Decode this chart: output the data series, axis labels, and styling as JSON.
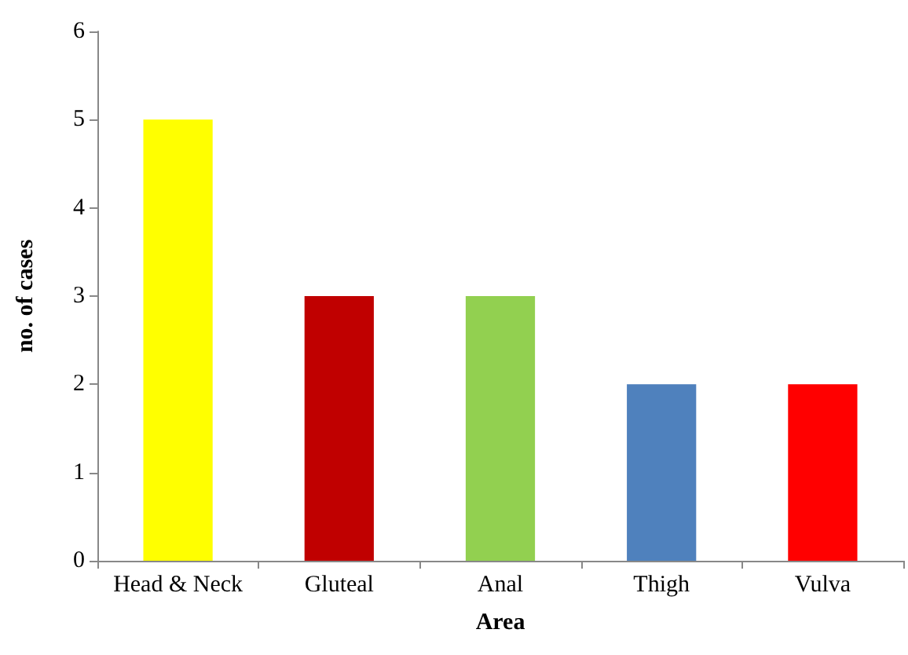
{
  "chart_data": {
    "type": "bar",
    "xlabel": "Area",
    "ylabel": "no. of cases",
    "categories": [
      "Head & Neck",
      "Gluteal",
      "Anal",
      "Thigh",
      "Vulva"
    ],
    "values": [
      5,
      3,
      3,
      2,
      2
    ],
    "colors": [
      "#ffff00",
      "#c00000",
      "#92d050",
      "#4f81bd",
      "#ff0000"
    ],
    "ylim": [
      0,
      6
    ],
    "yticks": [
      0,
      1,
      2,
      3,
      4,
      5,
      6
    ],
    "grid": false
  }
}
